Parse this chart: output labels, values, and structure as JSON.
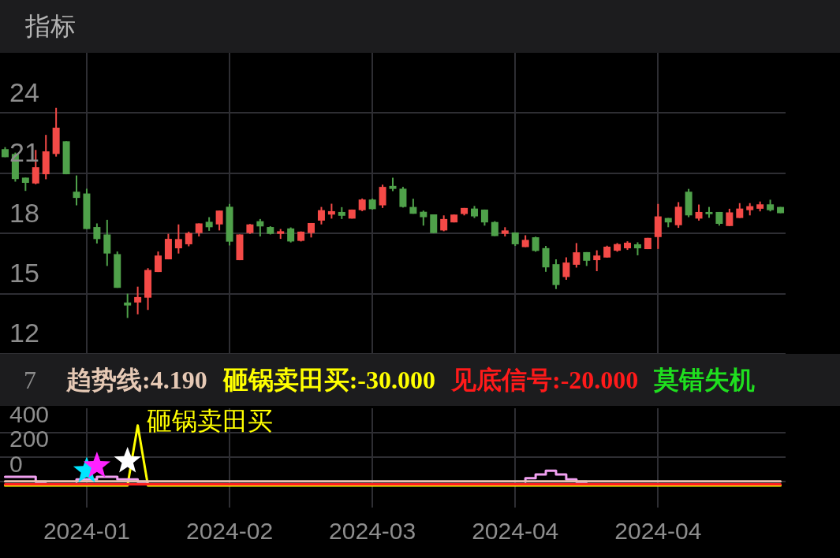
{
  "chart_data": [
    {
      "type": "candlestick",
      "title": "指标",
      "categories": [
        null,
        null,
        null,
        null,
        null,
        null,
        null,
        null,
        "2024-01",
        null,
        null,
        null,
        null,
        null,
        null,
        null,
        null,
        null,
        null,
        null,
        null,
        null,
        "2024-02",
        null,
        null,
        null,
        null,
        null,
        null,
        null,
        null,
        null,
        null,
        null,
        null,
        null,
        "2024-03",
        null,
        null,
        null,
        null,
        null,
        null,
        null,
        null,
        null,
        null,
        null,
        null,
        null,
        "2024-04",
        null,
        null,
        null,
        null,
        null,
        null,
        null,
        null,
        null,
        null,
        null,
        null,
        null,
        "2024-04",
        null,
        null,
        null,
        null,
        null,
        null,
        null,
        null,
        null,
        null,
        null,
        null
      ],
      "ohlc": [
        [
          22.2,
          22.3,
          21.8,
          21.8
        ],
        [
          21.96,
          22.03,
          20.58,
          20.71
        ],
        [
          20.78,
          20.78,
          20.12,
          20.52
        ],
        [
          20.49,
          22.16,
          20.45,
          21.3
        ],
        [
          20.95,
          22.91,
          20.7,
          22.09
        ],
        [
          21.96,
          24.26,
          21.83,
          23.27
        ],
        [
          22.59,
          22.59,
          20.95,
          20.95
        ],
        [
          20.08,
          20.89,
          19.4,
          19.77
        ],
        [
          19.99,
          20.23,
          18.22,
          18.22
        ],
        [
          18.32,
          18.5,
          17.5,
          17.72
        ],
        [
          17.95,
          18.68,
          16.38,
          17.0
        ],
        [
          16.97,
          17.1,
          15.29,
          15.29
        ],
        [
          14.56,
          15.0,
          13.79,
          14.41
        ],
        [
          14.56,
          15.35,
          13.97,
          14.83
        ],
        [
          14.8,
          16.27,
          14.19,
          16.18
        ],
        [
          16.08,
          17.1,
          16.08,
          16.9
        ],
        [
          16.71,
          17.98,
          16.71,
          17.73
        ],
        [
          17.26,
          18.45,
          17.0,
          17.72
        ],
        [
          17.46,
          18.09,
          17.36,
          18.02
        ],
        [
          18.02,
          18.5,
          17.85,
          18.5
        ],
        [
          18.58,
          18.81,
          18.13,
          18.31
        ],
        [
          18.45,
          19.14,
          18.15,
          19.14
        ],
        [
          19.33,
          19.47,
          17.4,
          17.59
        ],
        [
          16.67,
          17.95,
          16.67,
          17.95
        ],
        [
          18.02,
          18.47,
          17.98,
          18.45
        ],
        [
          18.61,
          18.72,
          17.85,
          18.35
        ],
        [
          18.32,
          18.36,
          17.95,
          17.98
        ],
        [
          17.98,
          18.22,
          17.73,
          18.11
        ],
        [
          18.25,
          18.3,
          17.55,
          17.6
        ],
        [
          17.63,
          18.1,
          17.6,
          18.09
        ],
        [
          18.02,
          18.52,
          17.8,
          18.52
        ],
        [
          18.64,
          19.32,
          18.45,
          19.16
        ],
        [
          18.94,
          19.48,
          18.74,
          19.11
        ],
        [
          19.07,
          19.31,
          18.72,
          18.88
        ],
        [
          18.74,
          19.19,
          18.74,
          19.19
        ],
        [
          19.16,
          19.74,
          19.11,
          19.69
        ],
        [
          19.69,
          19.74,
          19.19,
          19.21
        ],
        [
          19.4,
          20.43,
          19.27,
          20.32
        ],
        [
          20.37,
          20.78,
          20.11,
          20.22
        ],
        [
          20.23,
          20.32,
          19.29,
          19.32
        ],
        [
          19.32,
          19.73,
          18.98,
          18.98
        ],
        [
          19.08,
          19.14,
          18.39,
          18.81
        ],
        [
          18.95,
          18.95,
          18.02,
          18.02
        ],
        [
          18.15,
          18.9,
          18.11,
          18.72
        ],
        [
          18.55,
          18.94,
          18.55,
          18.94
        ],
        [
          18.97,
          19.27,
          18.9,
          19.27
        ],
        [
          19.24,
          19.37,
          18.77,
          18.85
        ],
        [
          19.19,
          19.19,
          18.39,
          18.55
        ],
        [
          18.57,
          18.61,
          17.87,
          17.87
        ],
        [
          17.98,
          18.31,
          17.85,
          18.15
        ],
        [
          18.05,
          18.05,
          17.38,
          17.46
        ],
        [
          17.32,
          17.91,
          17.32,
          17.68
        ],
        [
          17.81,
          17.84,
          17.09,
          17.13
        ],
        [
          17.27,
          17.38,
          16.09,
          16.31
        ],
        [
          16.47,
          16.71,
          15.23,
          15.43
        ],
        [
          15.83,
          16.81,
          15.69,
          16.55
        ],
        [
          16.44,
          17.52,
          16.3,
          17.06
        ],
        [
          17.07,
          17.07,
          16.38,
          16.64
        ],
        [
          16.67,
          17.16,
          16.12,
          16.9
        ],
        [
          16.8,
          17.39,
          16.8,
          17.34
        ],
        [
          17.14,
          17.52,
          17.09,
          17.47
        ],
        [
          17.26,
          17.61,
          17.18,
          17.54
        ],
        [
          17.46,
          17.56,
          16.91,
          17.26
        ],
        [
          17.22,
          17.78,
          17.22,
          17.78
        ],
        [
          17.82,
          19.47,
          17.23,
          18.85
        ],
        [
          18.77,
          18.77,
          18.31,
          18.55
        ],
        [
          18.41,
          19.56,
          18.28,
          19.33
        ],
        [
          20.08,
          20.22,
          18.81,
          18.9
        ],
        [
          18.74,
          19.44,
          18.64,
          19.07
        ],
        [
          19.07,
          19.32,
          18.78,
          18.96
        ],
        [
          19.07,
          19.07,
          18.39,
          18.48
        ],
        [
          18.37,
          19.23,
          18.37,
          19.05
        ],
        [
          18.77,
          19.51,
          18.77,
          19.24
        ],
        [
          19.16,
          19.51,
          18.9,
          19.36
        ],
        [
          19.23,
          19.59,
          19.1,
          19.45
        ],
        [
          19.45,
          19.68,
          19.1,
          19.16
        ],
        [
          19.32,
          19.32,
          19.01,
          19.01
        ]
      ],
      "colors": [
        "#4fa14a",
        "#4fa14a",
        "#4fa14a",
        "#f44a47",
        "#f44a47",
        "#f44a47",
        "#4fa14a",
        "#4fa14a",
        "#4fa14a",
        "#4fa14a",
        "#4fa14a",
        "#4fa14a",
        "#4fa14a",
        "#f44a47",
        "#f44a47",
        "#f44a47",
        "#f44a47",
        "#f44a47",
        "#f44a47",
        "#f44a47",
        "#4fa14a",
        "#f44a47",
        "#4fa14a",
        "#f44a47",
        "#f44a47",
        "#4fa14a",
        "#4fa14a",
        "#f44a47",
        "#4fa14a",
        "#f44a47",
        "#f44a47",
        "#f44a47",
        "#f44a47",
        "#4fa14a",
        "#f44a47",
        "#f44a47",
        "#4fa14a",
        "#f44a47",
        "#4fa14a",
        "#4fa14a",
        "#4fa14a",
        "#4fa14a",
        "#4fa14a",
        "#f44a47",
        "#f44a47",
        "#f44a47",
        "#4fa14a",
        "#4fa14a",
        "#4fa14a",
        "#f44a47",
        "#4fa14a",
        "#f44a47",
        "#4fa14a",
        "#4fa14a",
        "#4fa14a",
        "#f44a47",
        "#f44a47",
        "#4fa14a",
        "#f44a47",
        "#f44a47",
        "#f44a47",
        "#f44a47",
        "#4fa14a",
        "#f44a47",
        "#f44a47",
        "#4fa14a",
        "#f44a47",
        "#4fa14a",
        "#f44a47",
        "#4fa14a",
        "#4fa14a",
        "#f44a47",
        "#f44a47",
        "#f44a47",
        "#f44a47",
        "#4fa14a",
        "#4fa14a"
      ],
      "ylim": [
        12,
        27
      ],
      "yticks": [
        12,
        15,
        18,
        21,
        24
      ],
      "grid": true,
      "tick_labels": "y"
    },
    {
      "type": "line",
      "categories": [
        null,
        null,
        null,
        null,
        null,
        null,
        null,
        null,
        "2024-01",
        null,
        null,
        null,
        null,
        null,
        null,
        null,
        null,
        null,
        null,
        null,
        null,
        null,
        "2024-02",
        null,
        null,
        null,
        null,
        null,
        null,
        null,
        null,
        null,
        null,
        null,
        null,
        null,
        "2024-03",
        null,
        null,
        null,
        null,
        null,
        null,
        null,
        null,
        null,
        null,
        null,
        null,
        null,
        "2024-04",
        null,
        null,
        null,
        null,
        null,
        null,
        null,
        null,
        null,
        null,
        null,
        null,
        null,
        "2024-04",
        null,
        null,
        null,
        null,
        null,
        null,
        null,
        null,
        null,
        null,
        null,
        null
      ],
      "series": [
        {
          "type": "line",
          "color": "#e6c4b4",
          "marker": "none",
          "values": [
            4,
            4,
            4,
            4,
            4,
            4,
            4,
            4,
            4,
            4,
            4,
            4,
            4,
            4,
            4,
            4,
            4,
            4,
            4,
            4,
            4,
            4,
            4,
            4,
            4,
            4,
            4,
            4,
            4,
            4,
            4,
            4,
            4,
            4,
            4,
            4,
            4,
            4,
            4,
            4,
            4,
            4,
            4,
            4,
            4,
            4,
            4,
            4,
            4,
            4,
            4,
            4,
            4,
            4,
            4,
            4,
            4,
            4,
            4,
            4,
            4,
            4,
            4,
            4,
            4,
            4,
            4,
            4,
            4,
            4,
            4,
            4,
            4,
            4,
            4,
            4,
            4
          ]
        },
        {
          "type": "step",
          "color": "#f0a0f0",
          "marker": "none",
          "values": [
            40,
            40,
            40,
            40,
            0,
            null,
            null,
            0,
            20,
            20,
            40,
            40,
            20,
            20,
            0,
            null,
            null,
            null,
            null,
            null,
            null,
            null,
            null,
            null,
            null,
            null,
            null,
            null,
            null,
            null,
            null,
            null,
            null,
            null,
            null,
            null,
            null,
            null,
            null,
            null,
            null,
            null,
            null,
            null,
            null,
            null,
            null,
            null,
            null,
            null,
            null,
            0,
            30,
            60,
            90,
            60,
            20,
            0,
            null,
            null,
            null,
            null,
            null,
            null,
            null,
            null,
            null,
            null,
            null,
            null,
            null,
            null,
            null,
            null,
            null,
            null,
            null
          ]
        },
        {
          "type": "line",
          "color": "#ff2020",
          "marker": "none",
          "values": [
            -20,
            -20,
            -20,
            -20,
            -20,
            -20,
            -20,
            -20,
            -20,
            -20,
            -20,
            -20,
            -20,
            -20,
            -20,
            -20,
            -20,
            -20,
            -20,
            -20,
            -20,
            -20,
            -20,
            -20,
            -20,
            -20,
            -20,
            -20,
            -20,
            -20,
            -20,
            -20,
            -20,
            -20,
            -20,
            -20,
            -20,
            -20,
            -20,
            -20,
            -20,
            -20,
            -20,
            -20,
            -20,
            -20,
            -20,
            -20,
            -20,
            -20,
            -20,
            -20,
            -20,
            -20,
            -20,
            -20,
            -20,
            -20,
            -20,
            -20,
            -20,
            -20,
            -20,
            -20,
            -20,
            -20,
            -20,
            -20,
            -20,
            -20,
            -20,
            -20,
            -20,
            -20,
            -20,
            -20,
            -20
          ]
        },
        {
          "type": "line",
          "color": "#ffff00",
          "marker": "none",
          "values": [
            -30,
            -30,
            -30,
            -30,
            -30,
            -30,
            -30,
            -30,
            -30,
            -30,
            -30,
            -30,
            -30,
            460,
            -30,
            -30,
            -30,
            -30,
            -30,
            -30,
            -30,
            -30,
            -30,
            -30,
            -30,
            -30,
            -30,
            -30,
            -30,
            -30,
            -30,
            -30,
            -30,
            -30,
            -30,
            -30,
            -30,
            -30,
            -30,
            -30,
            -30,
            -30,
            -30,
            -30,
            -30,
            -30,
            -30,
            -30,
            -30,
            -30,
            -30,
            -30,
            -30,
            -30,
            -30,
            -30,
            -30,
            -30,
            -30,
            -30,
            -30,
            -30,
            -30,
            -30,
            -30,
            -30,
            -30,
            -30,
            -30,
            -30,
            -30,
            -30,
            -30,
            -30,
            -30,
            -30,
            -30
          ]
        },
        {
          "type": "scatter",
          "color": "#00e5ff",
          "marker": "star",
          "values": [
            null,
            null,
            null,
            null,
            null,
            null,
            null,
            null,
            90,
            null,
            null,
            null,
            null,
            null,
            null,
            null,
            null,
            null,
            null,
            null,
            null,
            null,
            null,
            null,
            null,
            null,
            null,
            null,
            null,
            null,
            null,
            null,
            null,
            null,
            null,
            null,
            null,
            null,
            null,
            null,
            null,
            null,
            null,
            null,
            null,
            null,
            null,
            null,
            null,
            null,
            null,
            null,
            null,
            null,
            null,
            null,
            null,
            null,
            null,
            null,
            null,
            null,
            null,
            null,
            null,
            null,
            null,
            null,
            null,
            null,
            null,
            null,
            null,
            null,
            null,
            null,
            null
          ]
        },
        {
          "type": "scatter",
          "color": "#ff22ff",
          "marker": "star",
          "values": [
            null,
            null,
            null,
            null,
            null,
            null,
            null,
            null,
            null,
            130,
            null,
            null,
            null,
            null,
            null,
            null,
            null,
            null,
            null,
            null,
            null,
            null,
            null,
            null,
            null,
            null,
            null,
            null,
            null,
            null,
            null,
            null,
            null,
            null,
            null,
            null,
            null,
            null,
            null,
            null,
            null,
            null,
            null,
            null,
            null,
            null,
            null,
            null,
            null,
            null,
            null,
            null,
            null,
            null,
            null,
            null,
            null,
            null,
            null,
            null,
            null,
            null,
            null,
            null,
            null,
            null,
            null,
            null,
            null,
            null,
            null,
            null,
            null,
            null,
            null,
            null,
            null
          ]
        },
        {
          "type": "scatter",
          "color": "#ffffff",
          "marker": "star",
          "values": [
            null,
            null,
            null,
            null,
            null,
            null,
            null,
            null,
            null,
            null,
            null,
            null,
            170,
            null,
            null,
            null,
            null,
            null,
            null,
            null,
            null,
            null,
            null,
            null,
            null,
            null,
            null,
            null,
            null,
            null,
            null,
            null,
            null,
            null,
            null,
            null,
            null,
            null,
            null,
            null,
            null,
            null,
            null,
            null,
            null,
            null,
            null,
            null,
            null,
            null,
            null,
            null,
            null,
            null,
            null,
            null,
            null,
            null,
            null,
            null,
            null,
            null,
            null,
            null,
            null,
            null,
            null,
            null,
            null,
            null,
            null,
            null,
            null,
            null,
            null,
            null,
            null
          ]
        }
      ],
      "annotations": [
        "7",
        "趋势线:4.190",
        "砸锅卖田买:-30.000",
        "见底信号:-20.000",
        "莫错失机",
        "砸锅卖田买"
      ],
      "ylim": [
        -210,
        600
      ],
      "yticks": [
        0,
        200,
        400
      ],
      "grid": true
    }
  ]
}
